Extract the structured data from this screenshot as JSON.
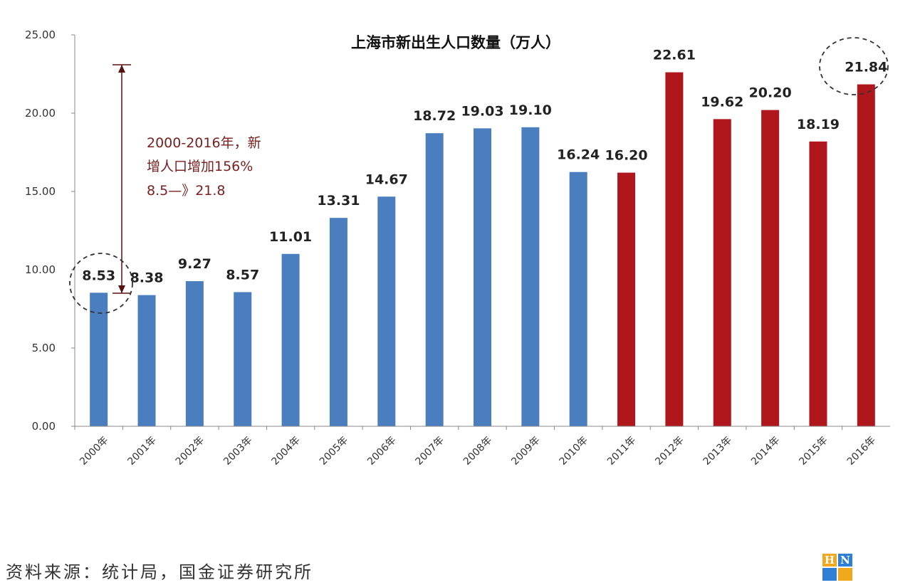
{
  "chart_data": {
    "type": "bar",
    "title": "上海市新出生人口数量（万人）",
    "categories": [
      "2000年",
      "2001年",
      "2002年",
      "2003年",
      "2004年",
      "2005年",
      "2006年",
      "2007年",
      "2008年",
      "2009年",
      "2010年",
      "2011年",
      "2012年",
      "2013年",
      "2014年",
      "2015年",
      "2016年"
    ],
    "values": [
      8.53,
      8.38,
      9.27,
      8.57,
      11.01,
      13.31,
      14.67,
      18.72,
      19.03,
      19.1,
      16.24,
      16.2,
      22.61,
      19.62,
      20.2,
      18.19,
      21.84
    ],
    "value_labels": [
      "8.53",
      "8.38",
      "9.27",
      "8.57",
      "11.01",
      "13.31",
      "14.67",
      "18.72",
      "19.03",
      "19.10",
      "16.24",
      "16.20",
      "22.61",
      "19.62",
      "20.20",
      "18.19",
      "21.84"
    ],
    "bar_colors": [
      "#4a7ebf",
      "#4a7ebf",
      "#4a7ebf",
      "#4a7ebf",
      "#4a7ebf",
      "#4a7ebf",
      "#4a7ebf",
      "#4a7ebf",
      "#4a7ebf",
      "#4a7ebf",
      "#4a7ebf",
      "#b0171c",
      "#b0171c",
      "#b0171c",
      "#b0171c",
      "#b0171c",
      "#b0171c"
    ],
    "ylim": [
      0,
      25
    ],
    "yticks": [
      "0.00",
      "5.00",
      "10.00",
      "15.00",
      "20.00",
      "25.00"
    ],
    "ytick_values": [
      0,
      5,
      10,
      15,
      20,
      25
    ],
    "xlabel": "",
    "ylabel": "",
    "grid": false,
    "legend": "none",
    "annotation": {
      "lines": [
        "2000-2016年，新",
        "增人口增加156%",
        "8.5—》21.8"
      ],
      "color": "#7a2020"
    },
    "highlighted_values": [
      "8.53",
      "21.84"
    ]
  },
  "source": "资料来源：统计局，国金证券研究所",
  "logo": {
    "letters": [
      "H",
      "N"
    ],
    "colors": [
      "#f2a81d",
      "#2f7fd6",
      "#2f7fd6",
      "#f2a81d"
    ]
  }
}
